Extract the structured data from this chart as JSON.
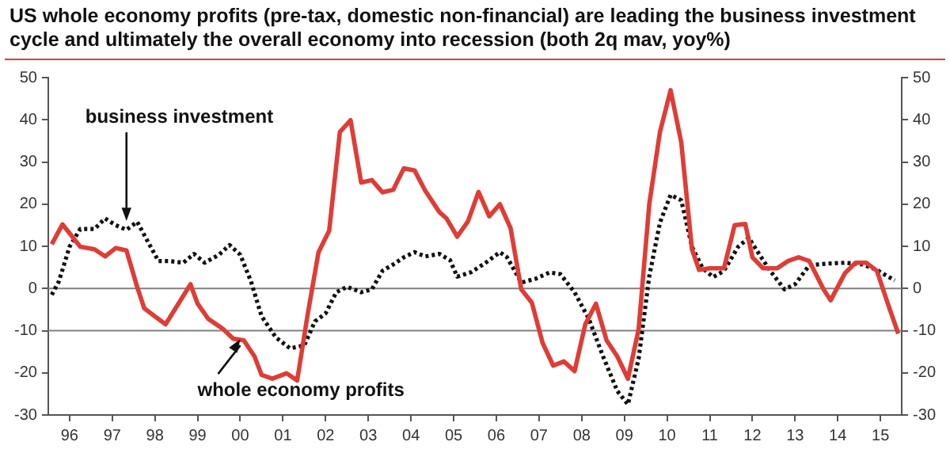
{
  "chart_data": {
    "type": "line",
    "title": "US whole economy profits (pre-tax, domestic non-financial) are leading the business investment cycle and ultimately the overall economy into recession (both 2q mav, yoy%)",
    "xlim": [
      "1996-01",
      "2016-01"
    ],
    "xticks": [
      {
        "value": "1996-07",
        "label": "96"
      },
      {
        "value": "1997-07",
        "label": "97"
      },
      {
        "value": "1998-07",
        "label": "98"
      },
      {
        "value": "1999-07",
        "label": "99"
      },
      {
        "value": "2000-07",
        "label": "00"
      },
      {
        "value": "2001-07",
        "label": "01"
      },
      {
        "value": "2002-07",
        "label": "02"
      },
      {
        "value": "2003-07",
        "label": "03"
      },
      {
        "value": "2004-07",
        "label": "04"
      },
      {
        "value": "2005-07",
        "label": "05"
      },
      {
        "value": "2006-07",
        "label": "06"
      },
      {
        "value": "2007-07",
        "label": "07"
      },
      {
        "value": "2008-07",
        "label": "08"
      },
      {
        "value": "2009-07",
        "label": "09"
      },
      {
        "value": "2010-07",
        "label": "10"
      },
      {
        "value": "2011-07",
        "label": "11"
      },
      {
        "value": "2012-07",
        "label": "12"
      },
      {
        "value": "2013-07",
        "label": "13"
      },
      {
        "value": "2014-07",
        "label": "14"
      },
      {
        "value": "2015-07",
        "label": "15"
      }
    ],
    "ylim": [
      -30,
      50
    ],
    "yticks": [
      -30,
      -20,
      -10,
      0,
      10,
      20,
      30,
      40,
      50
    ],
    "y2lim": [
      -30,
      50
    ],
    "y2ticks": [
      -30,
      -20,
      -10,
      0,
      10,
      20,
      30,
      40,
      50
    ],
    "grid": false,
    "legend": false,
    "marker": "none",
    "ref_lines": [
      {
        "axis": "y",
        "value": 0,
        "color": "#808080"
      },
      {
        "axis": "y",
        "value": -10,
        "color": "#808080"
      }
    ],
    "annotations": [
      {
        "text": "business investment",
        "x": "1997-11",
        "y": 16
      },
      {
        "text": "whole economy profits",
        "x": "2000-07",
        "y": -12
      }
    ],
    "series": [
      {
        "color": "#e03c36",
        "line_style": "solid",
        "x": [
          "1996-02",
          "1996-05",
          "1996-10",
          "1997-02",
          "1997-05",
          "1997-08",
          "1997-11",
          "1998-02",
          "1998-04",
          "1998-07",
          "1998-10",
          "1999-05",
          "1999-07",
          "1999-10",
          "2000-02",
          "2000-05",
          "2000-08",
          "2000-11",
          "2001-01",
          "2001-04",
          "2001-08",
          "2001-11",
          "2002-02",
          "2002-05",
          "2002-08",
          "2002-11",
          "2003-02",
          "2003-05",
          "2003-08",
          "2003-11",
          "2004-02",
          "2004-05",
          "2004-08",
          "2004-11",
          "2005-03",
          "2005-05",
          "2005-08",
          "2005-11",
          "2006-02",
          "2006-05",
          "2006-08",
          "2006-11",
          "2007-02",
          "2007-05",
          "2007-08",
          "2007-11",
          "2008-02",
          "2008-05",
          "2008-08",
          "2008-11",
          "2009-02",
          "2009-05",
          "2009-08",
          "2009-11",
          "2010-02",
          "2010-05",
          "2010-08",
          "2010-11",
          "2011-02",
          "2011-04",
          "2011-07",
          "2011-11",
          "2012-02",
          "2012-05",
          "2012-07",
          "2012-10",
          "2013-02",
          "2013-05",
          "2013-08",
          "2013-11",
          "2014-03",
          "2014-05",
          "2014-09",
          "2014-12",
          "2015-03",
          "2015-06",
          "2015-09",
          "2015-12"
        ],
        "values": [
          10.5,
          15.2,
          9.9,
          9.3,
          7.6,
          9.6,
          9.0,
          0.4,
          -4.7,
          -6.6,
          -8.5,
          1.0,
          -3.6,
          -7.2,
          -9.5,
          -11.9,
          -12.3,
          -16.1,
          -20.5,
          -21.4,
          -20.1,
          -21.8,
          -5.9,
          8.6,
          13.7,
          37.1,
          39.9,
          25.1,
          25.7,
          22.8,
          23.4,
          28.5,
          28.0,
          23.2,
          18.1,
          16.6,
          12.3,
          15.9,
          22.9,
          17.1,
          20.0,
          14.3,
          -0.2,
          -3.4,
          -12.9,
          -18.3,
          -17.3,
          -19.6,
          -8.5,
          -3.6,
          -12.3,
          -16.1,
          -21.4,
          -9.7,
          20.0,
          37.1,
          47.0,
          34.6,
          9.3,
          4.4,
          4.8,
          4.8,
          15.0,
          15.3,
          7.4,
          4.8,
          4.8,
          6.5,
          7.4,
          6.5,
          -0.2,
          -2.8,
          3.6,
          6.1,
          6.1,
          4.2,
          -3.4,
          -10.7
        ]
      },
      {
        "color": "#111111",
        "line_style": "dotted",
        "x": [
          "1996-02",
          "1996-04",
          "1996-07",
          "1996-10",
          "1997-02",
          "1997-05",
          "1997-08",
          "1997-11",
          "1998-02",
          "1998-08",
          "1998-11",
          "1999-03",
          "1999-06",
          "1999-09",
          "2000-01",
          "2000-04",
          "2000-07",
          "2000-10",
          "2001-01",
          "2001-05",
          "2001-09",
          "2002-01",
          "2002-04",
          "2002-07",
          "2002-10",
          "2003-01",
          "2003-05",
          "2003-08",
          "2003-11",
          "2004-02",
          "2004-05",
          "2004-08",
          "2004-11",
          "2005-03",
          "2005-06",
          "2005-08",
          "2005-12",
          "2006-04",
          "2006-08",
          "2006-10",
          "2007-02",
          "2007-06",
          "2007-10",
          "2008-01",
          "2008-05",
          "2008-09",
          "2009-01",
          "2009-05",
          "2009-08",
          "2009-11",
          "2010-02",
          "2010-05",
          "2010-08",
          "2010-11",
          "2011-02",
          "2011-05",
          "2011-08",
          "2011-11",
          "2012-03",
          "2012-06",
          "2012-09",
          "2012-12",
          "2013-04",
          "2013-07",
          "2013-11",
          "2014-04",
          "2014-09",
          "2015-02",
          "2015-06",
          "2015-11"
        ],
        "values": [
          -1.5,
          1.7,
          9.9,
          14.1,
          14.1,
          16.6,
          15.0,
          13.9,
          15.8,
          6.5,
          6.5,
          6.1,
          8.2,
          6.1,
          8.0,
          10.3,
          8.0,
          1.7,
          -6.6,
          -11.6,
          -14.2,
          -13.5,
          -7.8,
          -5.9,
          -0.9,
          0.4,
          -0.9,
          -0.2,
          4.2,
          5.7,
          7.4,
          8.6,
          7.6,
          8.2,
          6.7,
          2.8,
          3.9,
          6.1,
          8.6,
          7.4,
          1.4,
          2.3,
          3.8,
          3.4,
          -0.9,
          -7.2,
          -16.1,
          -24.3,
          -27.5,
          -16.7,
          2.9,
          15.6,
          22.2,
          20.9,
          9.9,
          4.8,
          2.7,
          4.2,
          9.9,
          12.0,
          8.0,
          4.2,
          -0.2,
          1.0,
          5.5,
          5.9,
          6.1,
          5.7,
          4.4,
          1.9
        ]
      }
    ]
  }
}
